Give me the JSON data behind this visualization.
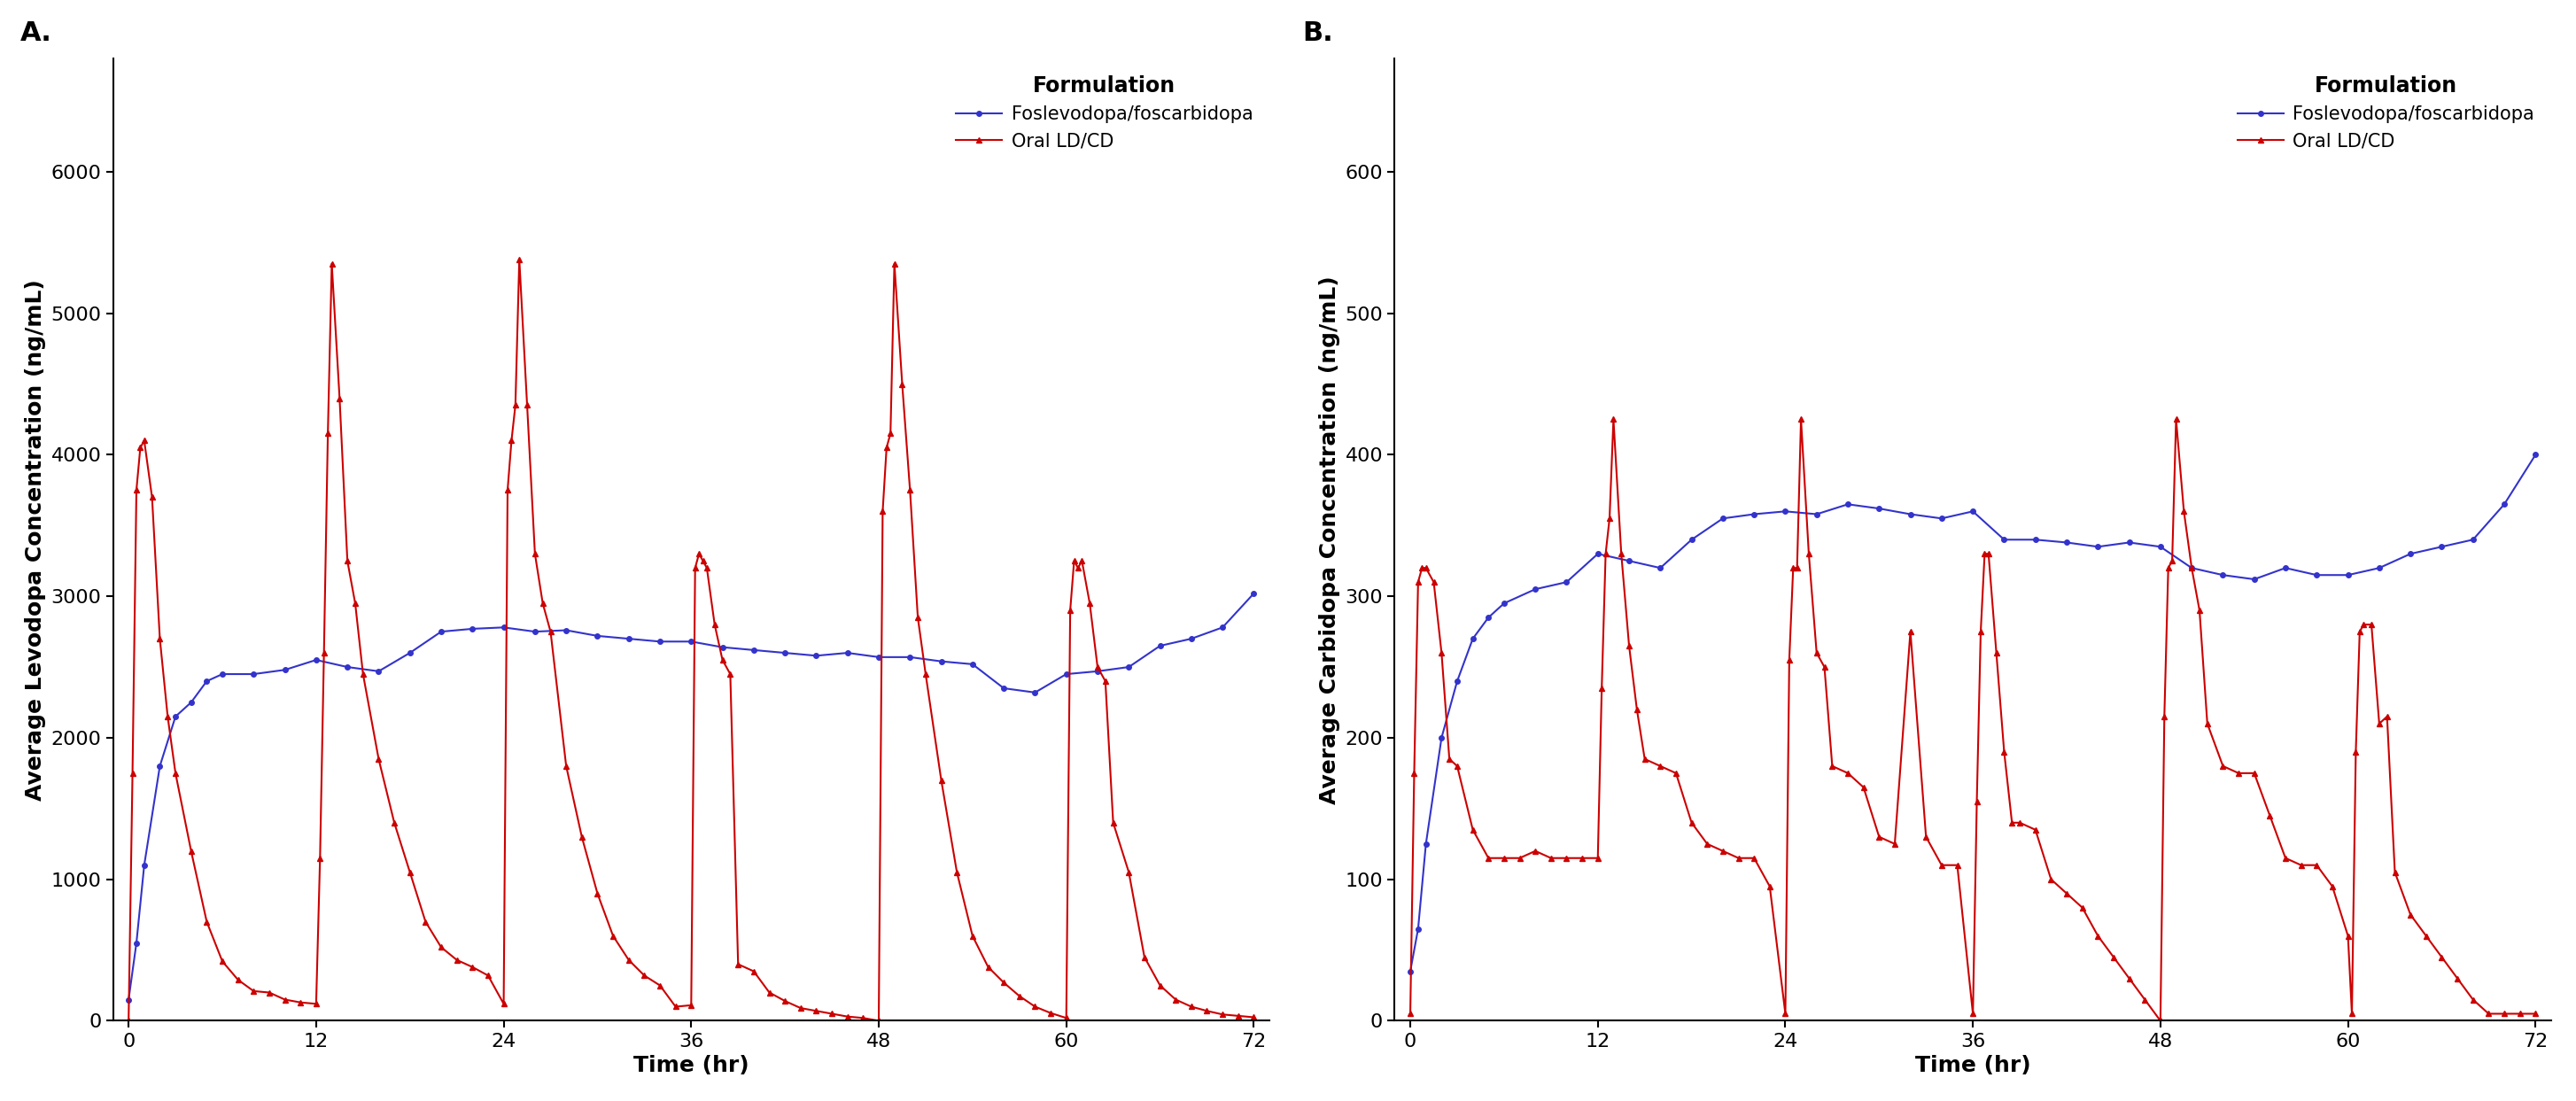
{
  "panel_A": {
    "title": "A.",
    "ylabel": "Average Levodopa Concentration (ng/mL)",
    "xlabel": "Time (hr)",
    "ylim": [
      0,
      6800
    ],
    "yticks": [
      0,
      1000,
      2000,
      3000,
      4000,
      5000,
      6000
    ],
    "xlim": [
      -1,
      73
    ],
    "xticks": [
      0,
      12,
      24,
      36,
      48,
      60,
      72
    ],
    "blue_x": [
      0,
      0.5,
      1,
      2,
      3,
      4,
      5,
      6,
      8,
      10,
      12,
      14,
      16,
      18,
      20,
      22,
      24,
      26,
      28,
      30,
      32,
      34,
      36,
      38,
      40,
      42,
      44,
      46,
      48,
      50,
      52,
      54,
      56,
      58,
      60,
      62,
      64,
      66,
      68,
      70,
      72
    ],
    "blue_y": [
      150,
      550,
      1100,
      1800,
      2150,
      2250,
      2400,
      2450,
      2450,
      2480,
      2550,
      2500,
      2470,
      2600,
      2750,
      2770,
      2780,
      2750,
      2760,
      2720,
      2700,
      2680,
      2680,
      2640,
      2620,
      2600,
      2580,
      2600,
      2570,
      2570,
      2540,
      2520,
      2350,
      2320,
      2450,
      2470,
      2500,
      2650,
      2700,
      2780,
      3020
    ],
    "red_x": [
      0,
      0.25,
      0.5,
      0.75,
      1,
      1.5,
      2,
      2.5,
      3,
      4,
      5,
      6,
      7,
      8,
      9,
      10,
      11,
      12,
      12.25,
      12.5,
      12.75,
      13,
      13.5,
      14,
      14.5,
      15,
      16,
      17,
      18,
      19,
      20,
      21,
      22,
      23,
      24,
      24.25,
      24.5,
      24.75,
      25,
      25.5,
      26,
      26.5,
      27,
      28,
      29,
      30,
      31,
      32,
      33,
      34,
      35,
      36,
      36.25,
      36.5,
      36.75,
      37,
      37.5,
      38,
      38.5,
      39,
      40,
      41,
      42,
      43,
      44,
      45,
      46,
      47,
      48,
      48.25,
      48.5,
      48.75,
      49,
      49.5,
      50,
      50.5,
      51,
      52,
      53,
      54,
      55,
      56,
      57,
      58,
      59,
      60,
      60.25,
      60.5,
      60.75,
      61,
      61.5,
      62,
      62.5,
      63,
      64,
      65,
      66,
      67,
      68,
      69,
      70,
      71,
      72
    ],
    "red_y": [
      0,
      1750,
      3750,
      4050,
      4100,
      3700,
      2700,
      2150,
      1750,
      1200,
      700,
      420,
      290,
      210,
      200,
      150,
      130,
      120,
      1150,
      2600,
      4150,
      5350,
      4400,
      3250,
      2950,
      2450,
      1850,
      1400,
      1050,
      700,
      520,
      430,
      380,
      320,
      120,
      3750,
      4100,
      4350,
      5380,
      4350,
      3300,
      2950,
      2750,
      1800,
      1300,
      900,
      600,
      430,
      320,
      250,
      100,
      110,
      3200,
      3300,
      3250,
      3200,
      2800,
      2550,
      2450,
      400,
      350,
      200,
      140,
      90,
      70,
      50,
      30,
      20,
      0,
      3600,
      4050,
      4150,
      5350,
      4500,
      3750,
      2850,
      2450,
      1700,
      1050,
      600,
      380,
      270,
      175,
      100,
      55,
      20,
      2900,
      3250,
      3200,
      3250,
      2950,
      2500,
      2400,
      1400,
      1050,
      450,
      250,
      150,
      100,
      70,
      45,
      35,
      25
    ]
  },
  "panel_B": {
    "title": "B.",
    "ylabel": "Average Carbidopa Concentration (ng/mL)",
    "xlabel": "Time (hr)",
    "ylim": [
      0,
      680
    ],
    "yticks": [
      0,
      100,
      200,
      300,
      400,
      500,
      600
    ],
    "xlim": [
      -1,
      73
    ],
    "xticks": [
      0,
      12,
      24,
      36,
      48,
      60,
      72
    ],
    "blue_x": [
      0,
      0.5,
      1,
      2,
      3,
      4,
      5,
      6,
      8,
      10,
      12,
      14,
      16,
      18,
      20,
      22,
      24,
      26,
      28,
      30,
      32,
      34,
      36,
      38,
      40,
      42,
      44,
      46,
      48,
      50,
      52,
      54,
      56,
      58,
      60,
      62,
      64,
      66,
      68,
      70,
      72
    ],
    "blue_y": [
      35,
      65,
      125,
      200,
      240,
      270,
      285,
      295,
      305,
      310,
      330,
      325,
      320,
      340,
      355,
      358,
      360,
      358,
      365,
      362,
      358,
      355,
      360,
      340,
      340,
      338,
      335,
      338,
      335,
      320,
      315,
      312,
      320,
      315,
      315,
      320,
      330,
      335,
      340,
      365,
      400
    ],
    "red_x": [
      0,
      0.25,
      0.5,
      0.75,
      1,
      1.5,
      2,
      2.5,
      3,
      4,
      5,
      6,
      7,
      8,
      9,
      10,
      11,
      12,
      12.25,
      12.5,
      12.75,
      13,
      13.5,
      14,
      14.5,
      15,
      16,
      17,
      18,
      19,
      20,
      21,
      22,
      23,
      24,
      24.25,
      24.5,
      24.75,
      25,
      25.5,
      26,
      26.5,
      27,
      28,
      29,
      30,
      31,
      32,
      33,
      34,
      35,
      36,
      36.25,
      36.5,
      36.75,
      37,
      37.5,
      38,
      38.5,
      39,
      40,
      41,
      42,
      43,
      44,
      45,
      46,
      47,
      48,
      48.25,
      48.5,
      48.75,
      49,
      49.5,
      50,
      50.5,
      51,
      52,
      53,
      54,
      55,
      56,
      57,
      58,
      59,
      60,
      60.25,
      60.5,
      60.75,
      61,
      61.5,
      62,
      62.5,
      63,
      64,
      65,
      66,
      67,
      68,
      69,
      70,
      71,
      72
    ],
    "red_y": [
      5,
      175,
      310,
      320,
      320,
      310,
      260,
      185,
      180,
      135,
      115,
      115,
      115,
      120,
      115,
      115,
      115,
      115,
      235,
      330,
      355,
      425,
      330,
      265,
      220,
      185,
      180,
      175,
      140,
      125,
      120,
      115,
      115,
      95,
      5,
      255,
      320,
      320,
      425,
      330,
      260,
      250,
      180,
      175,
      165,
      130,
      125,
      275,
      130,
      110,
      110,
      5,
      155,
      275,
      330,
      330,
      260,
      190,
      140,
      140,
      135,
      100,
      90,
      80,
      60,
      45,
      30,
      15,
      0,
      215,
      320,
      325,
      425,
      360,
      320,
      290,
      210,
      180,
      175,
      175,
      145,
      115,
      110,
      110,
      95,
      60,
      5,
      190,
      275,
      280,
      280,
      210,
      215,
      105,
      75,
      60,
      45,
      30,
      15,
      5,
      5,
      5,
      5
    ]
  },
  "legend": {
    "title": "Formulation",
    "entries": [
      "Foslevodopa/foscarbidopa",
      "Oral LD/CD"
    ]
  },
  "blue_color": "#3333cc",
  "red_color": "#cc0000",
  "marker_size": 4,
  "line_width": 1.5,
  "font_family": "DejaVu Sans",
  "background_color": "#ffffff"
}
